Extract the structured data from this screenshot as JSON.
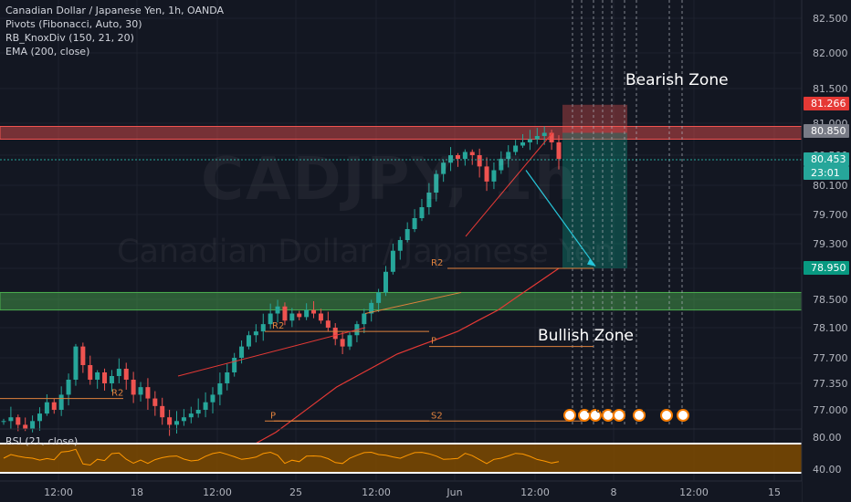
{
  "legend": {
    "line1": "Canadian Dollar / Japanese Yen, 1h, OANDA",
    "line2": "Pivots (Fibonacci, Auto, 30)",
    "line3": "RB_KnoxDiv (150, 21, 20)",
    "line4": "EMA (200, close)"
  },
  "watermark": {
    "symbol": "CADJPY, 1h",
    "name": "Canadian Dollar / Japanese Yen"
  },
  "rsi_label": "RSI (21, close)",
  "annotations": {
    "bearish": "Bearish Zone",
    "bullish": "Bullish Zone"
  },
  "colors": {
    "up": "#26a69a",
    "down": "#ef5350",
    "bg": "#131722",
    "grid": "#1e222d",
    "pivot": "#e0823d",
    "ema": "#e53935",
    "rsi": "#ff9800"
  },
  "chart_data": [
    {
      "type": "candlestick",
      "title": "Canadian Dollar / Japanese Yen, 1h, OANDA",
      "y_ticks": [
        "82.500",
        "82.000",
        "81.500",
        "81.000",
        "80.500",
        "80.100",
        "79.700",
        "79.300",
        "78.950",
        "78.500",
        "78.100",
        "77.700",
        "77.350",
        "77.000"
      ],
      "x_ticks": [
        "12:00",
        "18",
        "12:00",
        "25",
        "12:00",
        "Jun",
        "12:00",
        "8",
        "12:00",
        "15"
      ],
      "price_markers": [
        {
          "label": "81.266",
          "color": "#e53935"
        },
        {
          "label": "80.850",
          "color": "#787b86"
        },
        {
          "label": "80.453",
          "color": "#26a69a"
        },
        {
          "label": "23:01",
          "color": "#26a69a"
        },
        {
          "label": "78.950",
          "color": "#089981"
        }
      ],
      "zones": [
        {
          "name": "resistance",
          "from": 80.75,
          "to": 80.95,
          "color": "#ef5350"
        },
        {
          "name": "support",
          "from": 78.35,
          "to": 78.6,
          "color": "#4caf50"
        }
      ],
      "pivot_labels": [
        "R2",
        "R2",
        "P",
        "P",
        "R2",
        "S2"
      ],
      "event_labels": [
        "3",
        "2",
        "6",
        "1",
        "4"
      ],
      "close_path": [
        76.85,
        76.9,
        76.8,
        76.75,
        76.85,
        76.95,
        77.1,
        77.0,
        77.2,
        77.4,
        77.85,
        77.6,
        77.4,
        77.5,
        77.35,
        77.45,
        77.55,
        77.4,
        77.2,
        77.3,
        77.15,
        77.05,
        76.9,
        76.8,
        76.85,
        76.9,
        76.95,
        77.0,
        77.1,
        77.2,
        77.35,
        77.5,
        77.7,
        77.85,
        78.0,
        78.05,
        78.15,
        78.3,
        78.4,
        78.2,
        78.3,
        78.25,
        78.35,
        78.3,
        78.2,
        78.1,
        77.95,
        77.85,
        78.0,
        78.15,
        78.3,
        78.45,
        78.6,
        78.9,
        79.2,
        79.35,
        79.5,
        79.65,
        79.8,
        80.0,
        80.25,
        80.4,
        80.5,
        80.45,
        80.55,
        80.5,
        80.35,
        80.15,
        80.3,
        80.45,
        80.55,
        80.65,
        80.7,
        80.75,
        80.8,
        80.85,
        80.7,
        80.45
      ],
      "ema_path": [
        76.55,
        76.7,
        76.9,
        77.1,
        77.3,
        77.45,
        77.6,
        77.75,
        77.85,
        77.95,
        78.05,
        78.2,
        78.35,
        78.55,
        78.75,
        78.95
      ],
      "rsi": {
        "ylim": [
          30,
          80
        ],
        "y_ticks": [
          "80.00",
          "40.00"
        ],
        "band": [
          40,
          80
        ]
      }
    }
  ]
}
